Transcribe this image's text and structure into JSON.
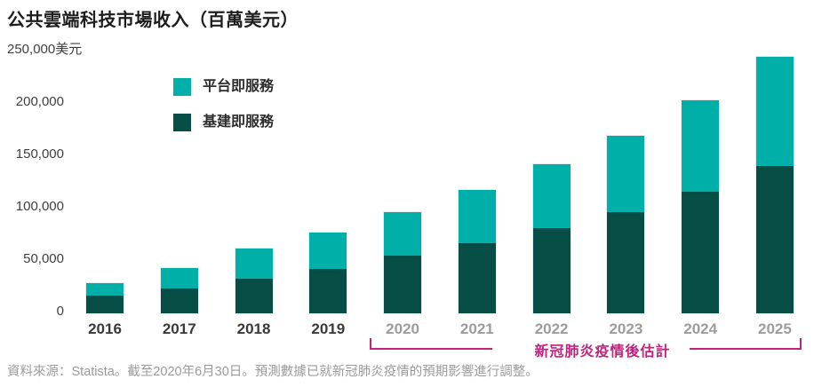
{
  "page": {
    "title": "公共雲端科技市場收入（百萬美元）",
    "source_note": "資料來源：Statista。截至2020年6月30日。預測數據已就新冠肺炎疫情的預期影響進行調整。"
  },
  "legend": {
    "items": [
      {
        "label": "平台即服務",
        "color": "#00b0a8"
      },
      {
        "label": "基建即服務",
        "color": "#064d45"
      }
    ]
  },
  "colors": {
    "paas": "#00b0a8",
    "iaas": "#064d45",
    "forecast_annotation": "#c2227d",
    "axis_text": "#3f3f3f",
    "year_past": "#3a3a3a",
    "year_forecast": "#9c9c9c",
    "footer_text": "#9b9b9b"
  },
  "chart_data": {
    "type": "bar",
    "stacked": true,
    "title": "公共雲端科技市場收入（百萬美元）",
    "unit": "百萬美元",
    "categories": [
      "2016",
      "2017",
      "2018",
      "2019",
      "2020",
      "2021",
      "2022",
      "2023",
      "2024",
      "2025"
    ],
    "series": [
      {
        "name": "基建即服務",
        "color": "#064d45",
        "values": [
          17000,
          23500,
          33000,
          42500,
          55000,
          67000,
          81500,
          97000,
          116000,
          141000
        ]
      },
      {
        "name": "平台即服務",
        "color": "#00b0a8",
        "values": [
          12000,
          19500,
          29000,
          35000,
          42000,
          51000,
          61000,
          73000,
          88000,
          104000
        ]
      }
    ],
    "totals": [
      29000,
      43000,
      62000,
      77500,
      97000,
      118000,
      142500,
      170000,
      204000,
      245000
    ],
    "y_ticks": [
      {
        "label": "250,000美元",
        "value": 250000,
        "align": "left"
      },
      {
        "label": "200,000",
        "value": 200000
      },
      {
        "label": "150,000",
        "value": 150000
      },
      {
        "label": "100,000",
        "value": 100000
      },
      {
        "label": "50,000",
        "value": 50000
      },
      {
        "label": "0",
        "value": 0
      }
    ],
    "ylim": [
      0,
      250000
    ],
    "grid": false,
    "legend_position": "upper-left-inside",
    "forecast_categories": [
      "2020",
      "2021",
      "2022",
      "2023",
      "2024",
      "2025"
    ],
    "annotation": {
      "label": "新冠肺炎疫情後估計",
      "color": "#c2227d",
      "spans_categories": [
        "2020",
        "2025"
      ]
    }
  }
}
